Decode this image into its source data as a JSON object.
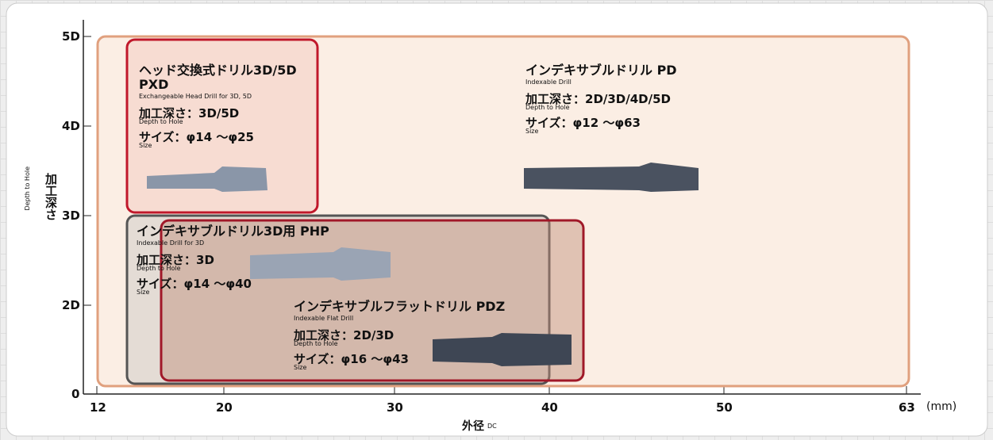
{
  "axes": {
    "y_ticks": [
      "5D",
      "4D",
      "3D",
      "2D",
      "0"
    ],
    "y_label": "加工深さ",
    "y_sublabel": "Depth to Hole",
    "x_ticks": [
      "12",
      "20",
      "30",
      "40",
      "50",
      "63"
    ],
    "x_unit": "(mm)",
    "x_label": "外径",
    "x_sublabel": "DC"
  },
  "regions": [
    {
      "title": [
        "インデキサブルドリル PD"
      ],
      "subtitle": "Indexable Drill",
      "depth": "加工深さ：2D/3D/4D/5D",
      "depth_sub": "Depth to Hole",
      "size": "サイズ：φ12 ～φ63",
      "size_sub": "Size"
    },
    {
      "title": [
        "ヘッド交換式ドリル3D/5D",
        "PXD"
      ],
      "subtitle": "Exchangeable Head Drill for 3D, 5D",
      "depth": "加工深さ：3D/5D",
      "depth_sub": "Depth to Hole",
      "size": "サイズ：φ14 ～φ25",
      "size_sub": "Size"
    },
    {
      "title": [
        "インデキサブルドリル3D用 PHP"
      ],
      "subtitle": "Indexable Drill for 3D",
      "depth": "加工深さ：3D",
      "depth_sub": "Depth to Hole",
      "size": "サイズ：φ14 ～φ40",
      "size_sub": "Size"
    },
    {
      "title": [
        "インデキサブルフラットドリル PDZ"
      ],
      "subtitle": "Indexable Flat Drill",
      "depth": "加工深さ：2D/3D",
      "depth_sub": "Depth to Hole",
      "size": "サイズ：φ16 ～φ43",
      "size_sub": "Size"
    }
  ]
}
